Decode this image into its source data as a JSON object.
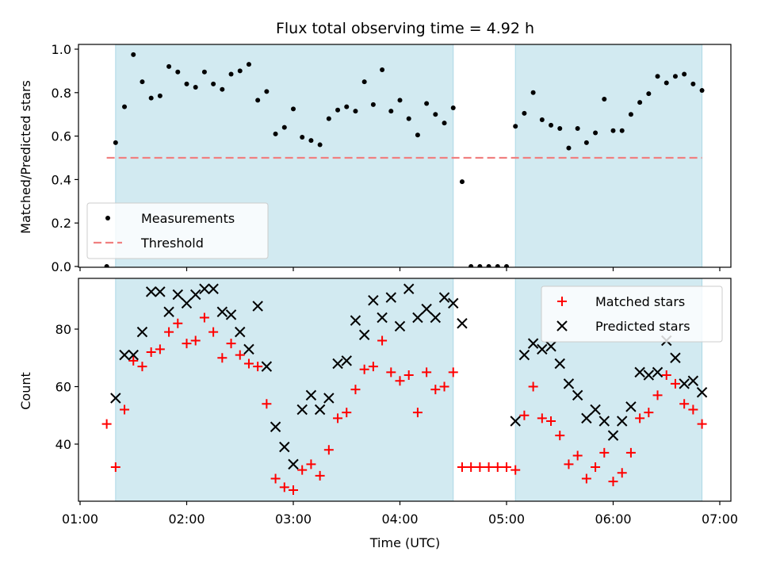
{
  "chart_data": {
    "title": "Flux total observing time = 4.92 h",
    "xlabel": "Time (UTC)",
    "xlim": [
      "01:00",
      "07:00"
    ],
    "xticks": [
      "01:00",
      "02:00",
      "03:00",
      "04:00",
      "05:00",
      "06:00",
      "07:00"
    ],
    "shaded_intervals": [
      [
        "01:20",
        "04:30"
      ],
      [
        "05:05",
        "06:50"
      ]
    ],
    "shade_color": "#add8e6",
    "panels": [
      {
        "type": "scatter",
        "ylabel": "Matched/Predicted stars",
        "ylim": [
          0.0,
          1.02
        ],
        "yticks": [
          "0.0",
          "0.2",
          "0.4",
          "0.6",
          "0.8",
          "1.0"
        ],
        "legend_position": "lower-left",
        "threshold": {
          "name": "Threshold",
          "value": 0.5,
          "x_range": [
            "01:15",
            "06:50"
          ],
          "color": "#f08080"
        },
        "series": [
          {
            "name": "Measurements",
            "color": "#000000",
            "marker": "dot",
            "x": [
              "01:15",
              "01:20",
              "01:25",
              "01:30",
              "01:35",
              "01:40",
              "01:45",
              "01:50",
              "01:55",
              "02:00",
              "02:05",
              "02:10",
              "02:15",
              "02:20",
              "02:25",
              "02:30",
              "02:35",
              "02:40",
              "02:45",
              "02:50",
              "02:55",
              "03:00",
              "03:05",
              "03:10",
              "03:15",
              "03:20",
              "03:25",
              "03:30",
              "03:35",
              "03:40",
              "03:45",
              "03:50",
              "03:55",
              "04:00",
              "04:05",
              "04:10",
              "04:15",
              "04:20",
              "04:25",
              "04:30",
              "04:35",
              "04:40",
              "04:45",
              "04:50",
              "04:55",
              "05:00",
              "05:05",
              "05:10",
              "05:15",
              "05:20",
              "05:25",
              "05:30",
              "05:35",
              "05:40",
              "05:45",
              "05:50",
              "05:55",
              "06:00",
              "06:05",
              "06:10",
              "06:15",
              "06:20",
              "06:25",
              "06:30",
              "06:35",
              "06:40",
              "06:45",
              "06:50"
            ],
            "y": [
              0.0,
              0.57,
              0.735,
              0.975,
              0.85,
              0.775,
              0.785,
              0.92,
              0.895,
              0.84,
              0.825,
              0.895,
              0.84,
              0.815,
              0.885,
              0.9,
              0.93,
              0.765,
              0.805,
              0.61,
              0.64,
              0.725,
              0.595,
              0.58,
              0.56,
              0.68,
              0.72,
              0.735,
              0.715,
              0.85,
              0.745,
              0.905,
              0.715,
              0.765,
              0.68,
              0.605,
              0.75,
              0.7,
              0.66,
              0.73,
              0.39,
              0.0,
              0.0,
              0.0,
              0.0,
              0.0,
              0.645,
              0.705,
              0.8,
              0.675,
              0.65,
              0.635,
              0.545,
              0.635,
              0.57,
              0.615,
              0.77,
              0.625,
              0.625,
              0.7,
              0.755,
              0.795,
              0.875,
              0.845,
              0.875,
              0.885,
              0.84,
              0.81
            ]
          }
        ]
      },
      {
        "type": "scatter",
        "ylabel": "Count",
        "ylim": [
          20,
          97
        ],
        "yticks": [
          "40",
          "60",
          "80"
        ],
        "legend_position": "upper-right",
        "series": [
          {
            "name": "Matched stars",
            "color": "#ff0000",
            "marker": "plus",
            "x": [
              "01:15",
              "01:20",
              "01:25",
              "01:30",
              "01:35",
              "01:40",
              "01:45",
              "01:50",
              "01:55",
              "02:00",
              "02:05",
              "02:10",
              "02:15",
              "02:20",
              "02:25",
              "02:30",
              "02:35",
              "02:40",
              "02:45",
              "02:50",
              "02:55",
              "03:00",
              "03:05",
              "03:10",
              "03:15",
              "03:20",
              "03:25",
              "03:30",
              "03:35",
              "03:40",
              "03:45",
              "03:50",
              "03:55",
              "04:00",
              "04:05",
              "04:10",
              "04:15",
              "04:20",
              "04:25",
              "04:30",
              "04:35",
              "04:40",
              "04:45",
              "04:50",
              "04:55",
              "05:00",
              "05:05",
              "05:10",
              "05:15",
              "05:20",
              "05:25",
              "05:30",
              "05:35",
              "05:40",
              "05:45",
              "05:50",
              "05:55",
              "06:00",
              "06:05",
              "06:10",
              "06:15",
              "06:20",
              "06:25",
              "06:30",
              "06:35",
              "06:40",
              "06:45",
              "06:50"
            ],
            "y": [
              47,
              32,
              52,
              69,
              67,
              72,
              73,
              79,
              82,
              75,
              76,
              84,
              79,
              70,
              75,
              71,
              68,
              67,
              54,
              28,
              25,
              24,
              31,
              33,
              29,
              38,
              49,
              51,
              59,
              66,
              67,
              76,
              65,
              62,
              64,
              51,
              65,
              59,
              60,
              65,
              32,
              32,
              32,
              32,
              32,
              32,
              31,
              50,
              60,
              49,
              48,
              43,
              33,
              36,
              28,
              32,
              37,
              27,
              30,
              37,
              49,
              51,
              57,
              64,
              61,
              54,
              52,
              47
            ]
          },
          {
            "name": "Predicted stars",
            "color": "#000000",
            "marker": "cross",
            "x": [
              "01:20",
              "01:25",
              "01:30",
              "01:35",
              "01:40",
              "01:45",
              "01:50",
              "01:55",
              "02:00",
              "02:05",
              "02:10",
              "02:15",
              "02:20",
              "02:25",
              "02:30",
              "02:35",
              "02:40",
              "02:45",
              "02:50",
              "02:55",
              "03:00",
              "03:05",
              "03:10",
              "03:15",
              "03:20",
              "03:25",
              "03:30",
              "03:35",
              "03:40",
              "03:45",
              "03:50",
              "03:55",
              "04:00",
              "04:05",
              "04:10",
              "04:15",
              "04:20",
              "04:25",
              "04:30",
              "04:35",
              "05:05",
              "05:10",
              "05:15",
              "05:20",
              "05:25",
              "05:30",
              "05:35",
              "05:40",
              "05:45",
              "05:50",
              "05:55",
              "06:00",
              "06:05",
              "06:10",
              "06:15",
              "06:20",
              "06:25",
              "06:30",
              "06:35",
              "06:40",
              "06:45",
              "06:50"
            ],
            "y": [
              56,
              71,
              71,
              79,
              93,
              93,
              86,
              92,
              89,
              92,
              94,
              94,
              86,
              85,
              79,
              73,
              88,
              67,
              46,
              39,
              33,
              52,
              57,
              52,
              56,
              68,
              69,
              83,
              78,
              90,
              84,
              91,
              81,
              94,
              84,
              87,
              84,
              91,
              89,
              82,
              48,
              71,
              75,
              73,
              74,
              68,
              61,
              57,
              49,
              52,
              48,
              43,
              48,
              53,
              65,
              64,
              65,
              76,
              70,
              61,
              62,
              58
            ]
          }
        ]
      }
    ]
  }
}
